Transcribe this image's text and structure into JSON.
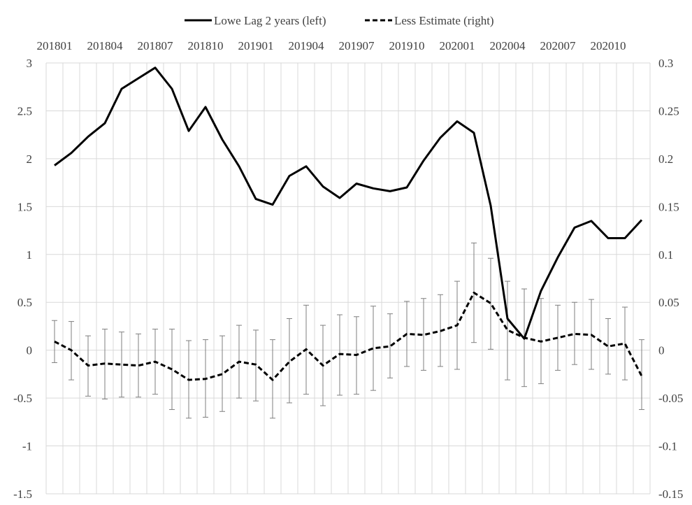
{
  "chart_data": {
    "type": "line",
    "legend": {
      "position": "top",
      "entries": [
        {
          "label": "Lowe Lag 2 years (left)",
          "style": "solid"
        },
        {
          "label": "Less Estimate (right)",
          "style": "dashed"
        }
      ]
    },
    "x_tick_labels": [
      "201801",
      "201804",
      "201807",
      "201810",
      "201901",
      "201904",
      "201907",
      "201910",
      "202001",
      "202004",
      "202007",
      "202010"
    ],
    "x_months": [
      "201801",
      "201802",
      "201803",
      "201804",
      "201805",
      "201806",
      "201807",
      "201808",
      "201809",
      "201810",
      "201811",
      "201812",
      "201901",
      "201902",
      "201903",
      "201904",
      "201905",
      "201906",
      "201907",
      "201908",
      "201909",
      "201910",
      "201911",
      "201912",
      "202001",
      "202002",
      "202003",
      "202004",
      "202005",
      "202006",
      "202007",
      "202008",
      "202009",
      "202010",
      "202011",
      "202012"
    ],
    "left_axis": {
      "min": -1.5,
      "max": 3,
      "step": 0.5,
      "tick_labels": [
        "-1.5",
        "-1",
        "-0.5",
        "0",
        "0.5",
        "1",
        "1.5",
        "2",
        "2.5",
        "3"
      ]
    },
    "right_axis": {
      "min": -0.15,
      "max": 0.3,
      "step": 0.05,
      "tick_labels": [
        "-0.15",
        "-0.1",
        "-0.05",
        "0",
        "0.05",
        "0.1",
        "0.15",
        "0.2",
        "0.25",
        "0.3"
      ]
    },
    "grid": true,
    "series": [
      {
        "name": "Lowe Lag 2 years (left)",
        "axis": "left",
        "values": [
          1.93,
          2.06,
          2.23,
          2.37,
          2.73,
          2.84,
          2.95,
          2.73,
          2.29,
          2.54,
          2.2,
          1.92,
          1.58,
          1.52,
          1.82,
          1.92,
          1.71,
          1.59,
          1.74,
          1.69,
          1.66,
          1.7,
          1.98,
          2.22,
          2.39,
          2.27,
          1.51,
          0.33,
          0.12,
          0.62,
          0.97,
          1.28,
          1.35,
          1.17,
          1.17,
          1.36
        ]
      },
      {
        "name": "Less Estimate (right)",
        "axis": "right",
        "values": [
          0.009,
          0.0,
          -0.016,
          -0.014,
          -0.015,
          -0.016,
          -0.012,
          -0.02,
          -0.031,
          -0.03,
          -0.025,
          -0.012,
          -0.015,
          -0.031,
          -0.012,
          0.001,
          -0.016,
          -0.004,
          -0.005,
          0.002,
          0.004,
          0.017,
          0.016,
          0.02,
          0.026,
          0.06,
          0.049,
          0.021,
          0.013,
          0.009,
          0.013,
          0.017,
          0.016,
          0.004,
          0.007,
          -0.027
        ],
        "error_upper": [
          0.031,
          0.03,
          0.015,
          0.022,
          0.019,
          0.017,
          0.022,
          0.022,
          0.01,
          0.011,
          0.015,
          0.026,
          0.021,
          0.011,
          0.033,
          0.047,
          0.026,
          0.037,
          0.035,
          0.046,
          0.038,
          0.051,
          0.054,
          0.058,
          0.072,
          0.112,
          0.096,
          0.072,
          0.064,
          0.054,
          0.047,
          0.05,
          0.053,
          0.033,
          0.045,
          0.011
        ],
        "error_lower": [
          -0.013,
          -0.031,
          -0.048,
          -0.051,
          -0.049,
          -0.049,
          -0.046,
          -0.062,
          -0.071,
          -0.07,
          -0.064,
          -0.05,
          -0.053,
          -0.071,
          -0.055,
          -0.046,
          -0.058,
          -0.047,
          -0.046,
          -0.042,
          -0.029,
          -0.017,
          -0.021,
          -0.017,
          -0.02,
          0.008,
          0.001,
          -0.031,
          -0.038,
          -0.035,
          -0.021,
          -0.015,
          -0.02,
          -0.025,
          -0.031,
          -0.062
        ]
      }
    ]
  }
}
